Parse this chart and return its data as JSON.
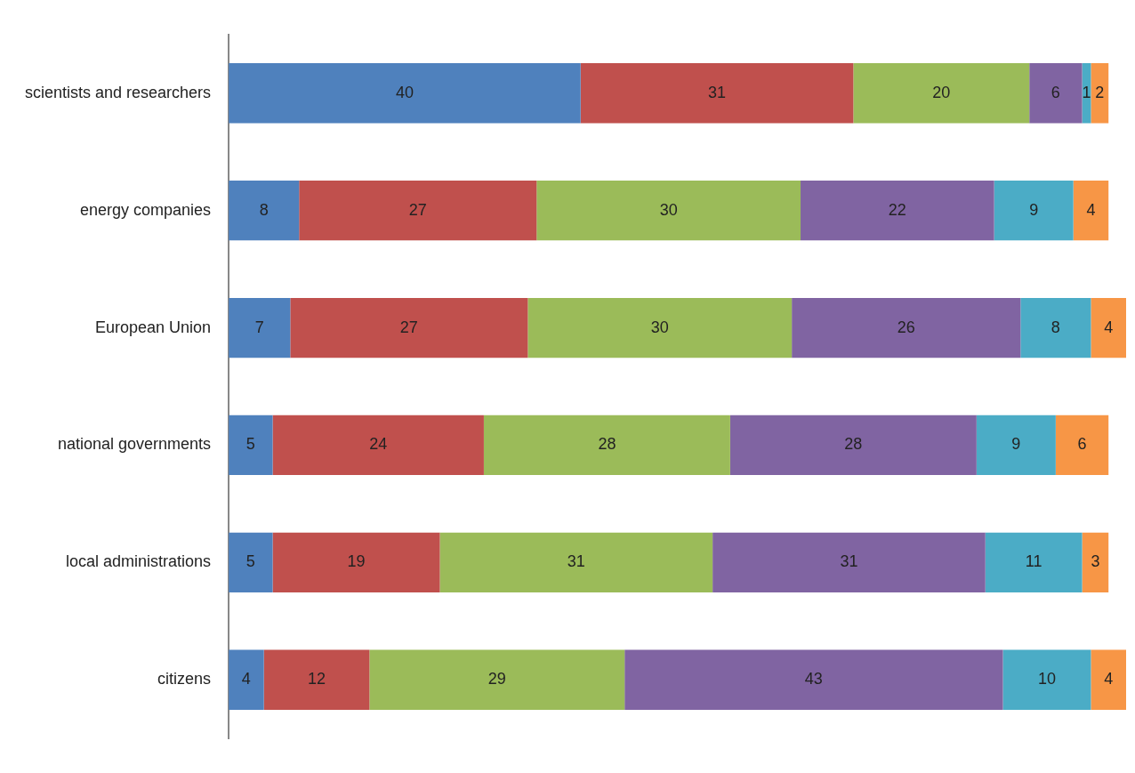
{
  "chart_data": {
    "type": "bar",
    "orientation": "horizontal",
    "stacked": true,
    "data_labels": true,
    "grid": false,
    "legend": false,
    "tick_labels": "y",
    "xlim": [
      0,
      102
    ],
    "categories": [
      "scientists and researchers",
      "energy companies",
      "European Union",
      "national governments",
      "local administrations",
      "citizens"
    ],
    "series": [
      {
        "color": "#4f81bd",
        "values": [
          40,
          8,
          7,
          5,
          5,
          4
        ]
      },
      {
        "color": "#c0504d",
        "values": [
          31,
          27,
          27,
          24,
          19,
          12
        ]
      },
      {
        "color": "#9bbb59",
        "values": [
          20,
          30,
          30,
          28,
          31,
          29
        ]
      },
      {
        "color": "#8064a2",
        "values": [
          6,
          22,
          26,
          28,
          31,
          43
        ]
      },
      {
        "color": "#4bacc6",
        "values": [
          1,
          9,
          8,
          9,
          11,
          10
        ]
      },
      {
        "color": "#f79646",
        "values": [
          2,
          4,
          4,
          6,
          3,
          4
        ]
      }
    ]
  }
}
